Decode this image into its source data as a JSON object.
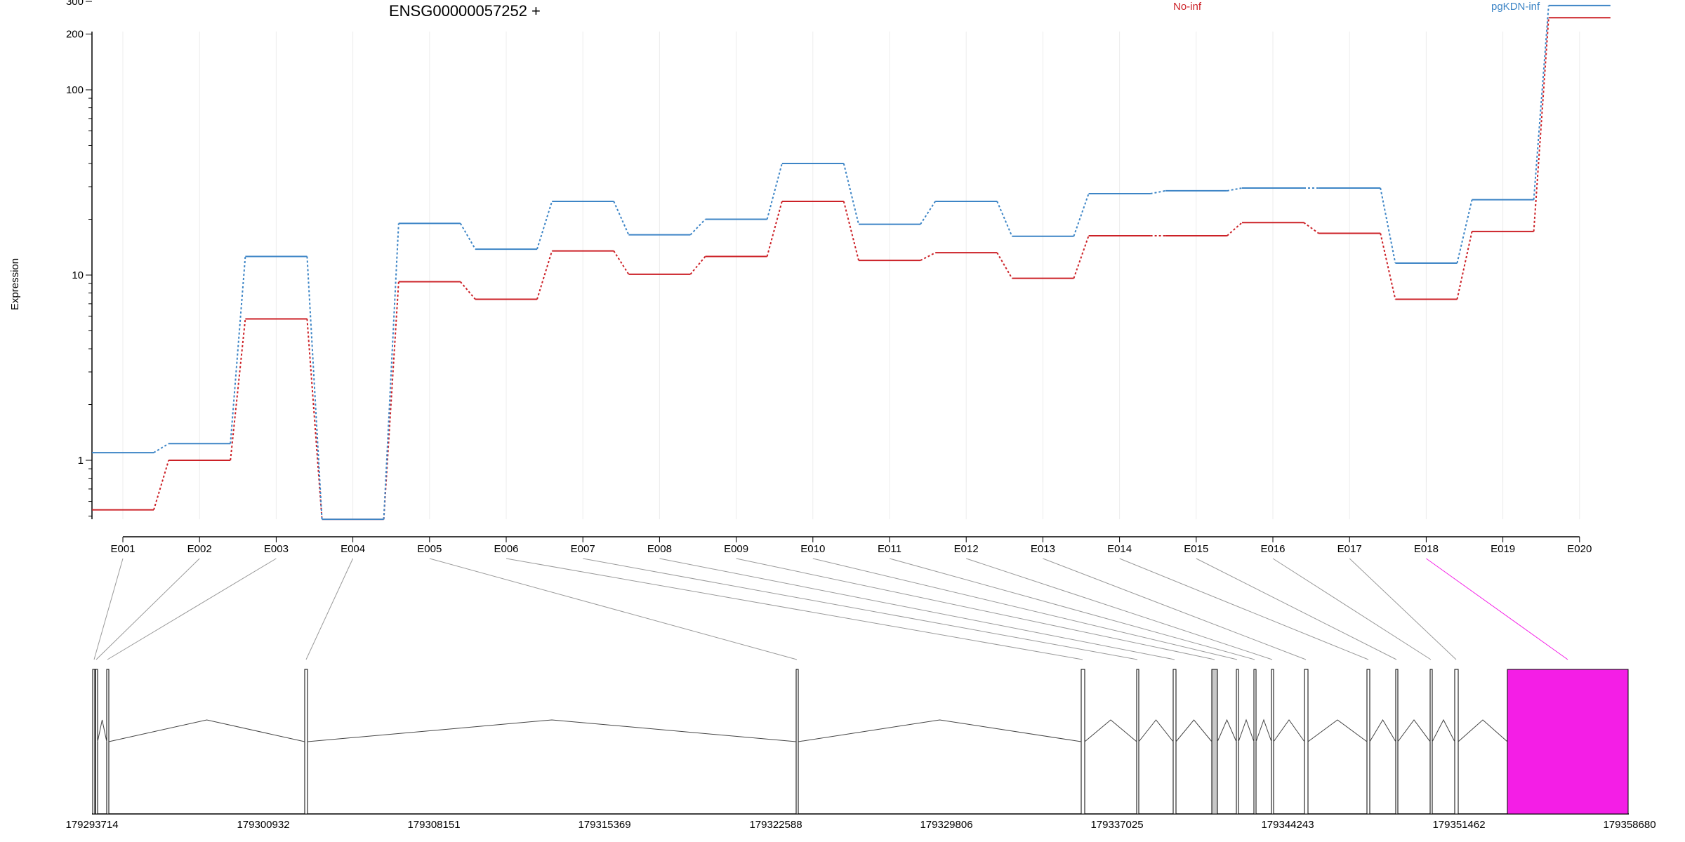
{
  "chart_data": {
    "type": "line",
    "title": "ENSG00000057252 +",
    "ylabel": "Expression",
    "y_scale": "log",
    "ylim": [
      0.5,
      320
    ],
    "y_ticks": [
      1,
      10,
      100,
      200,
      300
    ],
    "grid": "vertical",
    "legend_placement": "top",
    "categories": [
      "E001",
      "E002",
      "E003",
      "E004",
      "E005",
      "E006",
      "E007",
      "E008",
      "E009",
      "E010",
      "E011",
      "E012",
      "E013",
      "E014",
      "E015",
      "E016",
      "E017",
      "E018",
      "E019",
      "E020"
    ],
    "series": [
      {
        "name": "No-inf",
        "color": "#cc2127",
        "values": [
          0.54,
          1.0,
          5.8,
          0.48,
          9.2,
          7.4,
          13.5,
          10.1,
          12.6,
          25.0,
          12.0,
          13.2,
          9.6,
          16.3,
          16.3,
          19.2,
          16.8,
          7.4,
          17.2,
          245
        ]
      },
      {
        "name": "pgKDN-inf",
        "color": "#3d85c6",
        "values": [
          1.1,
          1.23,
          12.6,
          0.48,
          19.0,
          13.8,
          25.0,
          16.5,
          20.0,
          40.0,
          18.8,
          25.0,
          16.2,
          27.5,
          28.5,
          29.5,
          29.5,
          11.6,
          25.5,
          285
        ]
      }
    ],
    "gene_model": {
      "coordinate_ticks": [
        "179293714",
        "179300932",
        "179308151",
        "179315369",
        "179322588",
        "179329806",
        "179337025",
        "179344243",
        "179351462",
        "179358680"
      ],
      "highlight_exon": "E020",
      "highlight_color": "#f41ee6"
    }
  }
}
